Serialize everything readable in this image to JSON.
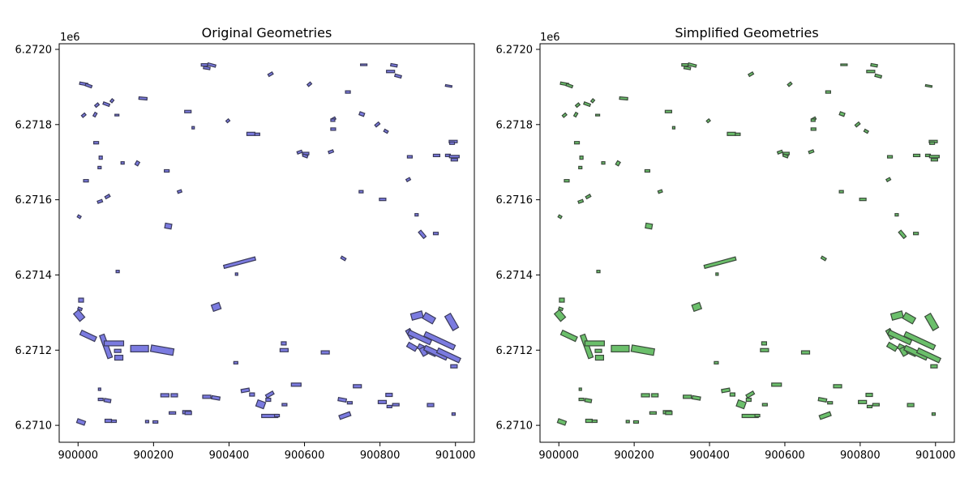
{
  "chart_data": [
    {
      "type": "scatter",
      "title": "Original Geometries",
      "xlabel": "",
      "ylabel": "",
      "y_offset_label": "1e6",
      "xlim": [
        899950,
        901050
      ],
      "ylim": [
        6.270955,
        6.272015
      ],
      "x_ticks": [
        900000,
        900200,
        900400,
        900600,
        900800,
        901000
      ],
      "x_tick_labels": [
        "900000",
        "900200",
        "900400",
        "900600",
        "900800",
        "901000"
      ],
      "y_ticks": [
        6.271,
        6.2712,
        6.2714,
        6.2716,
        6.2718,
        6.272
      ],
      "y_tick_labels": [
        "6.2710",
        "6.2712",
        "6.2714",
        "6.2716",
        "6.2718",
        "6.2720"
      ],
      "fill_color": "#7b7be0",
      "edge_color": "#3a3a5a",
      "grid": false
    },
    {
      "type": "scatter",
      "title": "Simplified Geometries",
      "xlabel": "",
      "ylabel": "",
      "y_offset_label": "1e6",
      "xlim": [
        899950,
        901050
      ],
      "ylim": [
        6.270955,
        6.272015
      ],
      "x_ticks": [
        900000,
        900200,
        900400,
        900600,
        900800,
        901000
      ],
      "x_tick_labels": [
        "900000",
        "900200",
        "900400",
        "900600",
        "900800",
        "901000"
      ],
      "y_ticks": [
        6.271,
        6.2712,
        6.2714,
        6.2716,
        6.2718,
        6.272
      ],
      "y_tick_labels": [
        "6.2710",
        "6.2712",
        "6.2714",
        "6.2716",
        "6.2718",
        "6.2720"
      ],
      "fill_color": "#6bbf6b",
      "edge_color": "#3a4a3a",
      "grid": false
    }
  ],
  "geometries": [
    [
      900757,
      6.271959,
      8,
      2,
      0
    ],
    [
      900837,
      6.2719576,
      8,
      3,
      10
    ],
    [
      900335,
      6.2719587,
      8,
      3,
      0
    ],
    [
      900354,
      6.2719583,
      10,
      3,
      15
    ],
    [
      900341,
      6.2719505,
      8,
      3,
      10
    ],
    [
      900828,
      6.2719412,
      10,
      3,
      0
    ],
    [
      900848,
      6.2719291,
      8,
      3,
      15
    ],
    [
      900510,
      6.271934,
      6,
      3,
      -30
    ],
    [
      900613,
      6.2719073,
      5,
      3,
      -40
    ],
    [
      900015,
      6.2719082,
      10,
      3,
      10
    ],
    [
      900028,
      6.2719035,
      8,
      3,
      20
    ],
    [
      900982,
      6.2719026,
      8,
      2,
      10
    ],
    [
      900715,
      6.2718866,
      6,
      3,
      0
    ],
    [
      900050,
      6.2718518,
      5,
      3,
      -40
    ],
    [
      900075,
      6.2718543,
      8,
      3,
      20
    ],
    [
      900090,
      6.2718634,
      4,
      3,
      -50
    ],
    [
      900045,
      6.2718265,
      5,
      3,
      -60
    ],
    [
      900015,
      6.2718248,
      5,
      3,
      -40
    ],
    [
      900103,
      6.2718252,
      5,
      2,
      0
    ],
    [
      900172,
      6.2718696,
      10,
      3,
      5
    ],
    [
      900291,
      6.2718346,
      8,
      3,
      0
    ],
    [
      900752,
      6.271828,
      6,
      4,
      20
    ],
    [
      900677,
      6.271815,
      5,
      3,
      -30
    ],
    [
      900675,
      6.2718116,
      5,
      3,
      0
    ],
    [
      900793,
      6.2718003,
      6,
      3,
      -40
    ],
    [
      900397,
      6.27181,
      4,
      3,
      -40
    ],
    [
      900305,
      6.2717916,
      3,
      3,
      0
    ],
    [
      900676,
      6.2717879,
      6,
      3,
      0
    ],
    [
      900816,
      6.2717822,
      5,
      3,
      30
    ],
    [
      900458,
      6.2717752,
      10,
      4,
      0
    ],
    [
      900475,
      6.2717742,
      6,
      3,
      0
    ],
    [
      900994,
      6.2717549,
      10,
      3,
      0
    ],
    [
      900991,
      6.2717505,
      6,
      3,
      0
    ],
    [
      900048,
      6.2717517,
      6,
      3,
      0
    ],
    [
      900587,
      6.2717268,
      6,
      3,
      -20
    ],
    [
      900603,
      6.2717231,
      8,
      3,
      0
    ],
    [
      900602,
      6.2717166,
      6,
      3,
      20
    ],
    [
      900670,
      6.2717278,
      6,
      3,
      -20
    ],
    [
      900950,
      6.2717179,
      8,
      3,
      0
    ],
    [
      900980,
      6.271718,
      6,
      3,
      0
    ],
    [
      900997,
      6.2717149,
      12,
      3,
      0
    ],
    [
      900997,
      6.2717064,
      8,
      3,
      0
    ],
    [
      900879,
      6.2717143,
      6,
      3,
      0
    ],
    [
      900060,
      6.271712,
      4,
      4,
      0
    ],
    [
      900057,
      6.2716856,
      4,
      3,
      0
    ],
    [
      900118,
      6.271698,
      4,
      3,
      0
    ],
    [
      900157,
      6.271697,
      5,
      4,
      -60
    ],
    [
      900235,
      6.2716768,
      6,
      3,
      0
    ],
    [
      900021,
      6.2716505,
      6,
      3,
      0
    ],
    [
      900875,
      6.2716537,
      5,
      3,
      -30
    ],
    [
      900269,
      6.271622,
      5,
      3,
      -20
    ],
    [
      900750,
      6.2716215,
      5,
      3,
      0
    ],
    [
      900807,
      6.271601,
      8,
      3,
      0
    ],
    [
      900078,
      6.2716085,
      6,
      3,
      -30
    ],
    [
      900058,
      6.2715955,
      6,
      3,
      -20
    ],
    [
      900003,
      6.271555,
      4,
      3,
      30
    ],
    [
      900897,
      6.27156,
      4,
      3,
      0
    ],
    [
      900239,
      6.27153,
      8,
      6,
      10
    ],
    [
      900912,
      6.271508,
      10,
      4,
      50
    ],
    [
      900948,
      6.2715103,
      6,
      3,
      0
    ],
    [
      900428,
      6.2714327,
      40,
      4,
      -15
    ],
    [
      900703,
      6.271444,
      6,
      3,
      30
    ],
    [
      900105,
      6.2714092,
      4,
      3,
      0
    ],
    [
      900420,
      6.2714022,
      3,
      3,
      0
    ],
    [
      900008,
      6.271333,
      6,
      5,
      0
    ],
    [
      900005,
      6.27131,
      5,
      3,
      20
    ],
    [
      900003,
      6.271292,
      8,
      12,
      -40
    ],
    [
      900366,
      6.271315,
      10,
      8,
      -20
    ],
    [
      900898,
      6.271292,
      14,
      8,
      -15
    ],
    [
      900930,
      6.271285,
      14,
      8,
      30
    ],
    [
      900990,
      6.271275,
      20,
      8,
      60
    ],
    [
      900027,
      6.271238,
      20,
      6,
      25
    ],
    [
      900074,
      6.27121,
      30,
      6,
      70
    ],
    [
      900095,
      6.271218,
      24,
      6,
      0
    ],
    [
      900163,
      6.271204,
      22,
      8,
      0
    ],
    [
      900223,
      6.2712,
      28,
      8,
      10
    ],
    [
      900105,
      6.271198,
      8,
      4,
      0
    ],
    [
      900108,
      6.27118,
      10,
      6,
      0
    ],
    [
      900545,
      6.271218,
      6,
      4,
      0
    ],
    [
      900546,
      6.2712,
      10,
      4,
      0
    ],
    [
      900655,
      6.271194,
      10,
      4,
      0
    ],
    [
      900880,
      6.271243,
      12,
      6,
      60
    ],
    [
      900905,
      6.271234,
      30,
      6,
      25
    ],
    [
      900958,
      6.271225,
      40,
      6,
      25
    ],
    [
      900885,
      6.271209,
      12,
      6,
      30
    ],
    [
      900925,
      6.2712,
      24,
      6,
      25
    ],
    [
      900915,
      6.271196,
      10,
      6,
      60
    ],
    [
      900948,
      6.271193,
      30,
      6,
      25
    ],
    [
      900982,
      6.271186,
      30,
      6,
      25
    ],
    [
      900996,
      6.271157,
      8,
      4,
      0
    ],
    [
      900418,
      6.2711665,
      5,
      3,
      0
    ],
    [
      900578,
      6.2711082,
      12,
      4,
      0
    ],
    [
      900740,
      6.271104,
      10,
      4,
      0
    ],
    [
      900057,
      6.271096,
      3,
      3,
      0
    ],
    [
      900060,
      6.271069,
      6,
      3,
      0
    ],
    [
      900078,
      6.271066,
      8,
      4,
      10
    ],
    [
      900230,
      6.27108,
      10,
      4,
      0
    ],
    [
      900255,
      6.27108,
      8,
      4,
      0
    ],
    [
      900341,
      6.271076,
      10,
      4,
      0
    ],
    [
      900365,
      6.271073,
      10,
      4,
      10
    ],
    [
      900443,
      6.271093,
      10,
      4,
      -10
    ],
    [
      900461,
      6.271082,
      6,
      4,
      0
    ],
    [
      900508,
      6.271082,
      10,
      4,
      -30
    ],
    [
      900504,
      6.271068,
      6,
      4,
      0
    ],
    [
      900484,
      6.271056,
      10,
      8,
      20
    ],
    [
      900547,
      6.271055,
      6,
      3,
      0
    ],
    [
      900700,
      6.271068,
      10,
      4,
      10
    ],
    [
      900720,
      6.27106,
      6,
      3,
      0
    ],
    [
      900824,
      6.271081,
      8,
      4,
      0
    ],
    [
      900806,
      6.271062,
      10,
      4,
      0
    ],
    [
      900825,
      6.27105,
      6,
      3,
      0
    ],
    [
      900842,
      6.271055,
      8,
      3,
      0
    ],
    [
      900934,
      6.271054,
      8,
      4,
      0
    ],
    [
      900508,
      6.271025,
      20,
      4,
      0
    ],
    [
      900527,
      6.271026,
      6,
      3,
      0
    ],
    [
      900250,
      6.271033,
      8,
      3,
      0
    ],
    [
      900288,
      6.271035,
      10,
      4,
      0
    ],
    [
      900292,
      6.271033,
      8,
      4,
      0
    ],
    [
      900707,
      6.271026,
      14,
      5,
      -20
    ],
    [
      900995,
      6.27103,
      4,
      3,
      0
    ],
    [
      900008,
      6.271009,
      10,
      5,
      20
    ],
    [
      900080,
      6.271012,
      8,
      4,
      0
    ],
    [
      900095,
      6.271011,
      6,
      3,
      0
    ],
    [
      900183,
      6.27101,
      4,
      3,
      0
    ],
    [
      900205,
      6.271009,
      6,
      3,
      0
    ]
  ]
}
